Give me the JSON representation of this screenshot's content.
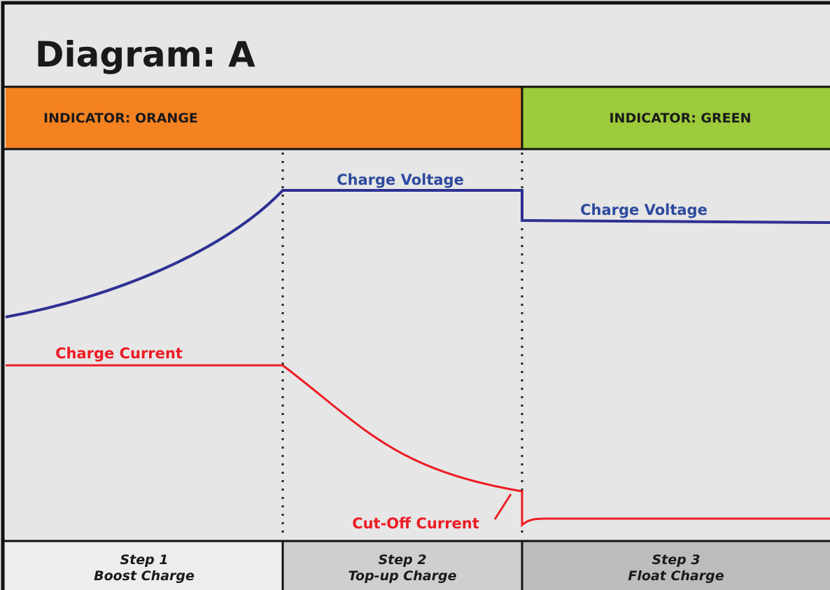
{
  "header": {
    "title": "Diagram: A"
  },
  "indicators": [
    {
      "label": "INDICATOR: ORANGE"
    },
    {
      "label": "INDICATOR: GREEN"
    }
  ],
  "curve_labels": {
    "voltage_step2": "Charge Voltage",
    "voltage_step3": "Charge Voltage",
    "current": "Charge Current",
    "cutoff": "Cut-Off Current"
  },
  "steps": [
    {
      "number": "Step 1",
      "name": "Boost Charge"
    },
    {
      "number": "Step 2",
      "name": "Top-up Charge"
    },
    {
      "number": "Step 3",
      "name": "Float Charge"
    }
  ]
}
